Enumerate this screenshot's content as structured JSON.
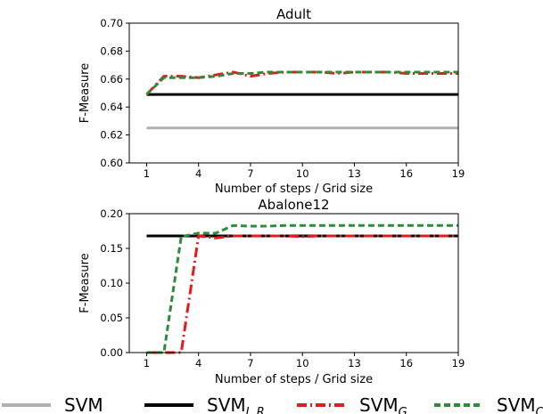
{
  "chart_data": [
    {
      "type": "line",
      "title": "Adult",
      "xlabel": "Number of steps / Grid size",
      "ylabel": "F-Measure",
      "xlim": [
        0,
        19
      ],
      "ylim": [
        0.6,
        0.7
      ],
      "xticks": [
        1,
        4,
        7,
        10,
        13,
        16,
        19
      ],
      "yticks": [
        0.6,
        0.62,
        0.64,
        0.66,
        0.68,
        0.7
      ],
      "ytick_labels": [
        "0.60",
        "0.62",
        "0.64",
        "0.66",
        "0.68",
        "0.70"
      ],
      "x": [
        1,
        2,
        3,
        4,
        5,
        6,
        7,
        8,
        9,
        10,
        11,
        12,
        13,
        14,
        15,
        16,
        17,
        18,
        19
      ],
      "series": [
        {
          "key": "svm",
          "values": [
            0.625,
            0.625,
            0.625,
            0.625,
            0.625,
            0.625,
            0.625,
            0.625,
            0.625,
            0.625,
            0.625,
            0.625,
            0.625,
            0.625,
            0.625,
            0.625,
            0.625,
            0.625,
            0.625
          ]
        },
        {
          "key": "svm_ir",
          "values": [
            0.649,
            0.649,
            0.649,
            0.649,
            0.649,
            0.649,
            0.649,
            0.649,
            0.649,
            0.649,
            0.649,
            0.649,
            0.649,
            0.649,
            0.649,
            0.649,
            0.649,
            0.649,
            0.649
          ]
        },
        {
          "key": "svm_g",
          "values": [
            0.649,
            0.662,
            0.662,
            0.661,
            0.663,
            0.665,
            0.662,
            0.664,
            0.665,
            0.665,
            0.665,
            0.664,
            0.665,
            0.665,
            0.665,
            0.664,
            0.664,
            0.664,
            0.664
          ]
        },
        {
          "key": "svm_c",
          "values": [
            0.649,
            0.661,
            0.661,
            0.661,
            0.662,
            0.664,
            0.664,
            0.665,
            0.665,
            0.665,
            0.665,
            0.665,
            0.665,
            0.665,
            0.665,
            0.665,
            0.665,
            0.665,
            0.665
          ]
        }
      ]
    },
    {
      "type": "line",
      "title": "Abalone12",
      "xlabel": "Number of steps / Grid size",
      "ylabel": "F-Measure",
      "xlim": [
        0,
        19
      ],
      "ylim": [
        0.0,
        0.2
      ],
      "xticks": [
        1,
        4,
        7,
        10,
        13,
        16,
        19
      ],
      "yticks": [
        0.0,
        0.05,
        0.1,
        0.15,
        0.2
      ],
      "ytick_labels": [
        "0.00",
        "0.05",
        "0.10",
        "0.15",
        "0.20"
      ],
      "x": [
        1,
        2,
        3,
        4,
        5,
        6,
        7,
        8,
        9,
        10,
        11,
        12,
        13,
        14,
        15,
        16,
        17,
        18,
        19
      ],
      "series": [
        {
          "key": "svm_ir",
          "values": [
            0.168,
            0.168,
            0.168,
            0.168,
            0.168,
            0.168,
            0.168,
            0.168,
            0.168,
            0.168,
            0.168,
            0.168,
            0.168,
            0.168,
            0.168,
            0.168,
            0.168,
            0.168,
            0.168
          ]
        },
        {
          "key": "svm_g",
          "values": [
            0.0,
            0.0,
            0.0,
            0.168,
            0.165,
            0.168,
            0.168,
            0.168,
            0.168,
            0.167,
            0.168,
            0.168,
            0.168,
            0.168,
            0.168,
            0.168,
            0.168,
            0.168,
            0.168
          ]
        },
        {
          "key": "svm_c",
          "values": [
            0.0,
            0.0,
            0.167,
            0.172,
            0.172,
            0.183,
            0.182,
            0.182,
            0.183,
            0.183,
            0.183,
            0.183,
            0.183,
            0.183,
            0.183,
            0.183,
            0.183,
            0.183,
            0.183
          ]
        }
      ]
    }
  ],
  "styles": {
    "svm": {
      "color": "#b0b0b0",
      "dash": ""
    },
    "svm_ir": {
      "color": "#000000",
      "dash": ""
    },
    "svm_g": {
      "color": "#e41a1c",
      "dash": "11,4,2,4"
    },
    "svm_c": {
      "color": "#2e8b3a",
      "dash": "7,4"
    }
  },
  "legend": [
    {
      "key": "svm",
      "label": "SVM",
      "sub": ""
    },
    {
      "key": "svm_ir",
      "label": "SVM",
      "sub": "I. R."
    },
    {
      "key": "svm_g",
      "label": "SVM",
      "sub": "G"
    },
    {
      "key": "svm_c",
      "label": "SVM",
      "sub": "C"
    }
  ]
}
